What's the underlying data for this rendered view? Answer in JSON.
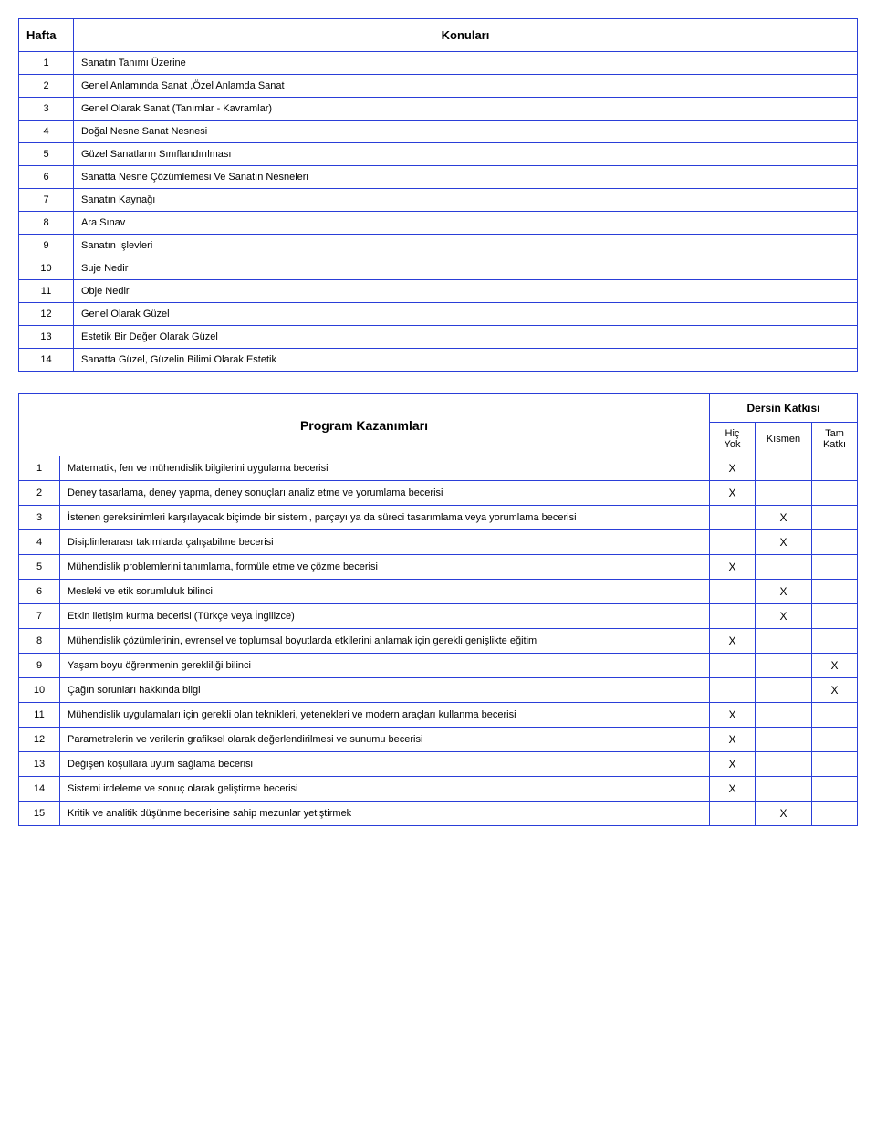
{
  "weeks_table": {
    "header_week": "Hafta",
    "header_topic": "Konuları",
    "rows": [
      {
        "n": "1",
        "t": "Sanatın Tanımı Üzerine"
      },
      {
        "n": "2",
        "t": "Genel Anlamında Sanat ,Özel Anlamda Sanat"
      },
      {
        "n": "3",
        "t": "Genel Olarak Sanat (Tanımlar - Kavramlar)"
      },
      {
        "n": "4",
        "t": "Doğal Nesne Sanat Nesnesi"
      },
      {
        "n": "5",
        "t": "Güzel Sanatların Sınıflandırılması"
      },
      {
        "n": "6",
        "t": "Sanatta Nesne Çözümlemesi Ve Sanatın Nesneleri"
      },
      {
        "n": "7",
        "t": "Sanatın Kaynağı"
      },
      {
        "n": "8",
        "t": "Ara Sınav"
      },
      {
        "n": "9",
        "t": "Sanatın İşlevleri"
      },
      {
        "n": "10",
        "t": "Suje Nedir"
      },
      {
        "n": "11",
        "t": "Obje Nedir"
      },
      {
        "n": "12",
        "t": "Genel Olarak Güzel"
      },
      {
        "n": "13",
        "t": "Estetik Bir Değer Olarak Güzel"
      },
      {
        "n": "14",
        "t": "Sanatta Güzel, Güzelin Bilimi Olarak Estetik"
      }
    ]
  },
  "outcomes_table": {
    "header_program": "Program Kazanımları",
    "header_contrib": "Dersin Katkısı",
    "header_hic": "Hiç Yok",
    "header_kismen": "Kısmen",
    "header_tam": "Tam Katkı",
    "mark": "X",
    "rows": [
      {
        "n": "1",
        "t": "Matematik, fen ve mühendislik bilgilerini uygulama becerisi",
        "hic": true,
        "kis": false,
        "tam": false
      },
      {
        "n": "2",
        "t": "Deney tasarlama, deney yapma, deney sonuçları analiz etme ve yorumlama becerisi",
        "hic": true,
        "kis": false,
        "tam": false
      },
      {
        "n": "3",
        "t": "İstenen gereksinimleri karşılayacak biçimde bir sistemi, parçayı ya da süreci tasarımlama veya yorumlama becerisi",
        "hic": false,
        "kis": true,
        "tam": false
      },
      {
        "n": "4",
        "t": "Disiplinlerarası takımlarda çalışabilme becerisi",
        "hic": false,
        "kis": true,
        "tam": false
      },
      {
        "n": "5",
        "t": "Mühendislik problemlerini tanımlama, formüle etme ve çözme becerisi",
        "hic": true,
        "kis": false,
        "tam": false
      },
      {
        "n": "6",
        "t": "Mesleki ve etik sorumluluk bilinci",
        "hic": false,
        "kis": true,
        "tam": false
      },
      {
        "n": "7",
        "t": "Etkin iletişim kurma becerisi (Türkçe veya İngilizce)",
        "hic": false,
        "kis": true,
        "tam": false
      },
      {
        "n": "8",
        "t": "Mühendislik çözümlerinin, evrensel ve toplumsal boyutlarda etkilerini anlamak için gerekli genişlikte eğitim",
        "hic": true,
        "kis": false,
        "tam": false
      },
      {
        "n": "9",
        "t": "Yaşam boyu öğrenmenin gerekliliği bilinci",
        "hic": false,
        "kis": false,
        "tam": true
      },
      {
        "n": "10",
        "t": "Çağın sorunları hakkında bilgi",
        "hic": false,
        "kis": false,
        "tam": true
      },
      {
        "n": "11",
        "t": "Mühendislik uygulamaları için gerekli olan teknikleri, yetenekleri ve modern araçları kullanma becerisi",
        "hic": true,
        "kis": false,
        "tam": false
      },
      {
        "n": "12",
        "t": "Parametrelerin ve verilerin grafiksel olarak değerlendirilmesi ve sunumu becerisi",
        "hic": true,
        "kis": false,
        "tam": false
      },
      {
        "n": "13",
        "t": "Değişen koşullara uyum sağlama becerisi",
        "hic": true,
        "kis": false,
        "tam": false
      },
      {
        "n": "14",
        "t": "Sistemi irdeleme ve sonuç olarak geliştirme becerisi",
        "hic": true,
        "kis": false,
        "tam": false
      },
      {
        "n": "15",
        "t": "Kritik ve analitik düşünme becerisine sahip mezunlar yetiştirmek",
        "hic": false,
        "kis": true,
        "tam": false
      }
    ]
  }
}
